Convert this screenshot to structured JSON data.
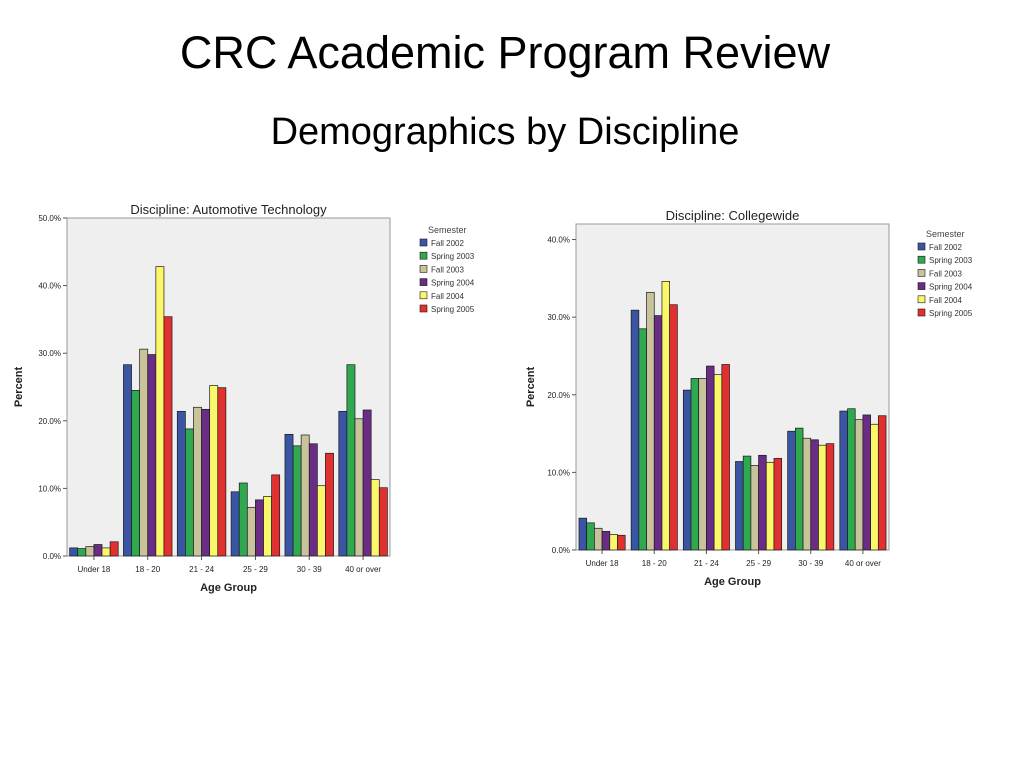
{
  "slide": {
    "title": "CRC Academic Program Review",
    "subtitle": "Demographics by Discipline"
  },
  "legend_title": "Semester",
  "series_colors": [
    "#3a55a4",
    "#2fa84f",
    "#c8c39a",
    "#6b2c86",
    "#fbf76b",
    "#e0302f"
  ],
  "chart_data": [
    {
      "type": "bar",
      "title": "Discipline: Automotive Technology",
      "xlabel": "Age Group",
      "ylabel": "Percent",
      "ylim": [
        0,
        50
      ],
      "y_ticks": [
        0,
        10,
        20,
        30,
        40,
        50
      ],
      "y_tick_labels": [
        "0.0%",
        "10.0%",
        "20.0%",
        "30.0%",
        "40.0%",
        "50.0%"
      ],
      "grid": false,
      "legend": "right",
      "categories": [
        "Under 18",
        "18 - 20",
        "21 - 24",
        "25 - 29",
        "30 - 39",
        "40 or over"
      ],
      "series": [
        {
          "name": "Fall 2002",
          "values": [
            1.2,
            28.3,
            21.4,
            9.5,
            18.0,
            21.4
          ]
        },
        {
          "name": "Spring 2003",
          "values": [
            1.1,
            24.5,
            18.8,
            10.8,
            16.3,
            28.3
          ]
        },
        {
          "name": "Fall 2003",
          "values": [
            1.4,
            30.6,
            22.0,
            7.2,
            17.9,
            20.3
          ]
        },
        {
          "name": "Spring 2004",
          "values": [
            1.7,
            29.8,
            21.7,
            8.3,
            16.6,
            21.6
          ]
        },
        {
          "name": "Fall 2004",
          "values": [
            1.2,
            42.8,
            25.2,
            8.8,
            10.4,
            11.3
          ]
        },
        {
          "name": "Spring 2005",
          "values": [
            2.1,
            35.4,
            24.9,
            12.0,
            15.2,
            10.1
          ]
        }
      ]
    },
    {
      "type": "bar",
      "title": "Discipline: Collegewide",
      "xlabel": "Age Group",
      "ylabel": "Percent",
      "ylim": [
        0,
        42
      ],
      "y_ticks": [
        0,
        10,
        20,
        30,
        40
      ],
      "y_tick_labels": [
        "0.0%",
        "10.0%",
        "20.0%",
        "30.0%",
        "40.0%"
      ],
      "grid": false,
      "legend": "right",
      "categories": [
        "Under 18",
        "18 - 20",
        "21 - 24",
        "25 - 29",
        "30 - 39",
        "40 or over"
      ],
      "series": [
        {
          "name": "Fall 2002",
          "values": [
            4.1,
            30.9,
            20.6,
            11.4,
            15.3,
            17.9
          ]
        },
        {
          "name": "Spring 2003",
          "values": [
            3.5,
            28.5,
            22.1,
            12.1,
            15.7,
            18.2
          ]
        },
        {
          "name": "Fall 2003",
          "values": [
            2.8,
            33.2,
            22.1,
            10.9,
            14.4,
            16.8
          ]
        },
        {
          "name": "Spring 2004",
          "values": [
            2.4,
            30.2,
            23.7,
            12.2,
            14.2,
            17.4
          ]
        },
        {
          "name": "Fall 2004",
          "values": [
            2.0,
            34.6,
            22.6,
            11.3,
            13.5,
            16.2
          ]
        },
        {
          "name": "Spring 2005",
          "values": [
            1.9,
            31.6,
            23.9,
            11.8,
            13.7,
            17.3
          ]
        }
      ]
    }
  ]
}
